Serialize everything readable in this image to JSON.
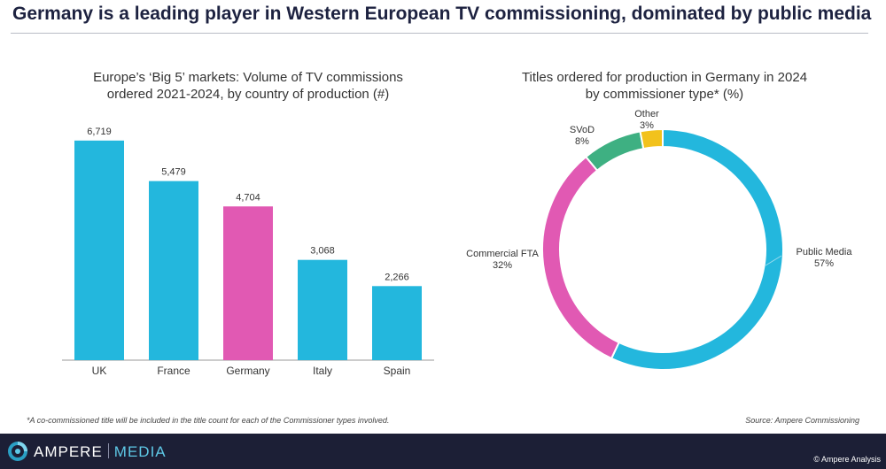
{
  "page": {
    "title": "Germany is a leading player in Western European TV commissioning, dominated by public media",
    "footnote": "*A co-commissioned title will be included in the title count for each of the Commissioner types involved.",
    "source": "Source: Ampere Commissioning",
    "brand_part1": "AMPERE",
    "brand_part2": "MEDIA",
    "copyright": "© Ampere Analysis"
  },
  "colors": {
    "bar_default": "#23b7dd",
    "bar_highlight": "#e159b3",
    "public_media": "#23b7dd",
    "commercial_fta": "#e159b3",
    "svod": "#3eb082",
    "other": "#f2c21c",
    "footer": "#1c1f36"
  },
  "chart_data": [
    {
      "type": "bar",
      "title_line1": "Europe’s ‘Big 5’ markets: Volume of TV commissions",
      "title_line2": "ordered 2021-2024, by country of production (#)",
      "categories": [
        "UK",
        "France",
        "Germany",
        "Italy",
        "Spain"
      ],
      "values": [
        6719,
        5479,
        4704,
        3068,
        2266
      ],
      "value_labels": [
        "6,719",
        "5,479",
        "4,704",
        "3,068",
        "2,266"
      ],
      "highlight": "Germany",
      "ylim": [
        0,
        7500
      ],
      "grid": false
    },
    {
      "type": "pie",
      "donut": true,
      "title_line1": "Titles ordered for production in Germany in 2024",
      "title_line2": "by commissioner type* (%)",
      "slices": [
        {
          "label": "Public Media",
          "value": 57,
          "pct_label": "57%",
          "color_key": "public_media"
        },
        {
          "label": "Commercial FTA",
          "value": 32,
          "pct_label": "32%",
          "color_key": "commercial_fta"
        },
        {
          "label": "SVoD",
          "value": 8,
          "pct_label": "8%",
          "color_key": "svod"
        },
        {
          "label": "Other",
          "value": 3,
          "pct_label": "3%",
          "color_key": "other"
        }
      ]
    }
  ]
}
